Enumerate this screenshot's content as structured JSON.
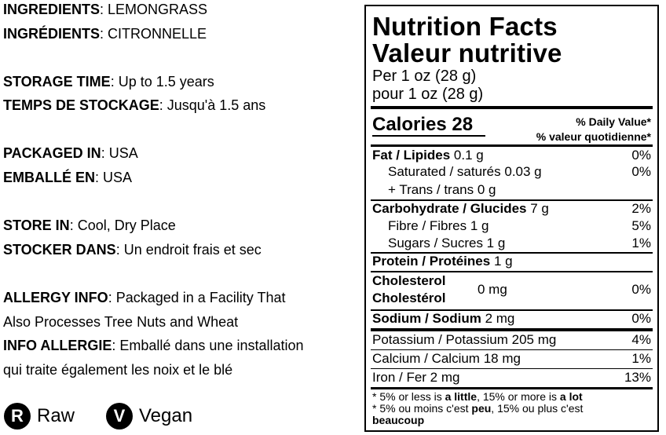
{
  "info": {
    "ingredients": {
      "label_en": "INGREDIENTS",
      "value_en": "LEMONGRASS",
      "label_fr": "INGRÉDIENTS",
      "value_fr": "CITRONNELLE"
    },
    "storage_time": {
      "label_en": "STORAGE TIME",
      "value_en": "Up to 1.5 years",
      "label_fr": "TEMPS DE STOCKAGE",
      "value_fr": "Jusqu'à 1.5 ans"
    },
    "packaged": {
      "label_en": "PACKAGED IN",
      "value_en": "USA",
      "label_fr": "EMBALLÉ EN",
      "value_fr": "USA"
    },
    "store_in": {
      "label_en": "STORE IN",
      "value_en": "Cool, Dry Place",
      "label_fr": "STOCKER DANS",
      "value_fr": "Un endroit frais et sec"
    },
    "allergy": {
      "label_en": "ALLERGY INFO",
      "value_en_1": "Packaged in a Facility That",
      "value_en_2": "Also Processes Tree Nuts and Wheat",
      "label_fr": "INFO ALLERGIE",
      "value_fr_1": "Emballé dans une installation",
      "value_fr_2": "qui traite également les noix et le blé"
    }
  },
  "badges": [
    {
      "letter": "R",
      "label": "Raw"
    },
    {
      "letter": "V",
      "label": "Vegan"
    }
  ],
  "nutrition": {
    "title_en": "Nutrition Facts",
    "title_fr": "Valeur nutritive",
    "serving_en": "Per 1 oz (28 g)",
    "serving_fr": "pour 1 oz (28 g)",
    "calories_label": "Calories",
    "calories_value": "28",
    "dv_en": "% Daily Value*",
    "dv_fr": "% valeur quotidienne*",
    "rows": {
      "fat": {
        "label": "Fat / Lipides",
        "amount": "0.1 g",
        "pct": "0%"
      },
      "saturated": {
        "label": "Saturated / saturés 0.03 g",
        "pct": "0%"
      },
      "trans": {
        "label": "+ Trans / trans 0 g"
      },
      "carb": {
        "label": "Carbohydrate / Glucides",
        "amount": "7 g",
        "pct": "2%"
      },
      "fibre": {
        "label": "Fibre / Fibres 1 g",
        "pct": "5%"
      },
      "sugars": {
        "label": "Sugars / Sucres 1 g",
        "pct": "1%"
      },
      "protein": {
        "label": "Protein / Protéines",
        "amount": "1 g"
      },
      "cholesterol": {
        "label_1": "Cholesterol",
        "label_2": "Cholestérol",
        "amount": "0 mg",
        "pct": "0%"
      },
      "sodium": {
        "label": "Sodium / Sodium",
        "amount": "2 mg",
        "pct": "0%"
      },
      "potassium": {
        "label": "Potassium / Potassium 205 mg",
        "pct": "4%"
      },
      "calcium": {
        "label": "Calcium / Calcium 18 mg",
        "pct": "1%"
      },
      "iron": {
        "label": "Iron / Fer 2 mg",
        "pct": "13%"
      }
    },
    "footnote": {
      "en_pre": "* 5% or less is ",
      "en_little": "a little",
      "en_mid": ", 15% or more is ",
      "en_lot": "a lot",
      "fr_pre": "* 5% ou moins c'est ",
      "fr_peu": "peu",
      "fr_mid": ", 15% ou plus c'est",
      "fr_beaucoup": "beaucoup"
    }
  }
}
